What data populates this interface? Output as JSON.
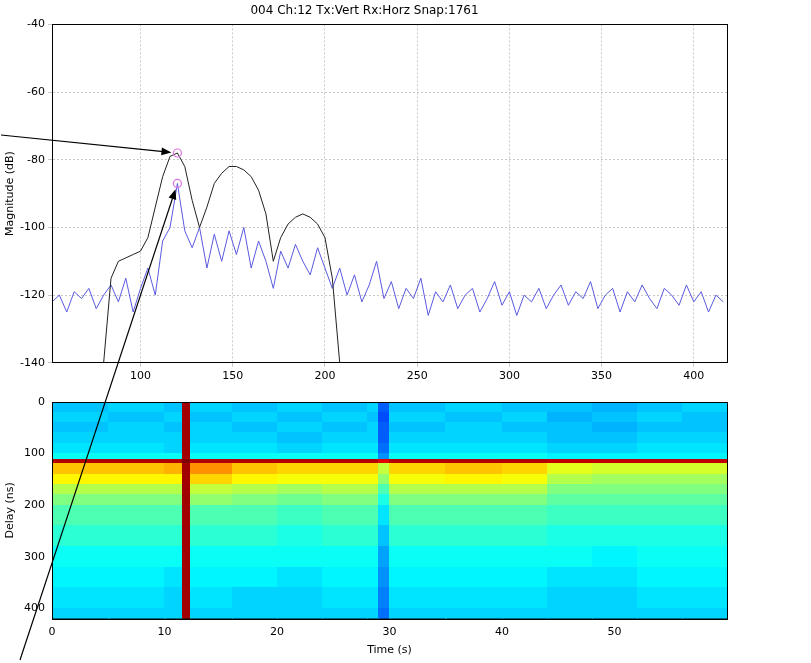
{
  "chart_data": [
    {
      "type": "line",
      "title": "004 Ch:12 Tx:Vert Rx:Horz Snap:1761",
      "y_label": "Magnitude (dB)",
      "x": [
        52,
        56,
        60,
        64,
        68,
        72,
        76,
        80,
        84,
        88,
        92,
        96,
        100,
        104,
        108,
        112,
        116,
        120,
        124,
        128,
        132,
        136,
        140,
        144,
        148,
        152,
        156,
        160,
        164,
        168,
        172,
        176,
        180,
        184,
        188,
        192,
        196,
        200,
        204,
        208,
        212,
        216,
        220,
        224,
        228,
        232,
        236,
        240,
        244,
        248,
        252,
        256,
        260,
        264,
        268,
        272,
        276,
        280,
        284,
        288,
        292,
        296,
        300,
        304,
        308,
        312,
        316,
        320,
        324,
        328,
        332,
        336,
        340,
        344,
        348,
        352,
        356,
        360,
        364,
        368,
        372,
        376,
        380,
        384,
        388,
        392,
        396,
        400,
        404,
        408,
        412,
        416
      ],
      "series": [
        {
          "color": "#222222",
          "line_style": "solid",
          "values": [
            null,
            null,
            null,
            null,
            null,
            null,
            null,
            -140,
            -115,
            -110,
            -109,
            -108,
            -107,
            -103,
            -94,
            -85,
            -79,
            -78,
            -82,
            -92,
            -100,
            -94,
            -87,
            -84,
            -82,
            -82,
            -83,
            -85,
            -89,
            -96,
            -110,
            -103,
            -99,
            -97,
            -96,
            -97,
            -99,
            -103,
            -115,
            -140,
            null,
            null,
            null,
            null,
            null,
            null,
            null,
            null,
            null,
            null,
            null,
            null,
            null,
            null,
            null,
            null,
            null,
            null,
            null,
            null,
            null,
            null,
            null,
            null,
            null,
            null,
            null,
            null,
            null,
            null,
            null,
            null,
            null,
            null,
            null,
            null,
            null,
            null,
            null,
            null,
            null,
            null,
            null,
            null,
            null,
            null,
            null,
            null,
            null,
            null,
            null,
            null
          ]
        },
        {
          "color": "#5a5ae0",
          "line_style": "solid",
          "values": [
            -122,
            -120,
            -125,
            -119,
            -121,
            -118,
            -124,
            -120,
            -117,
            -122,
            -115,
            -125,
            -118,
            -112,
            -120,
            -104,
            -100,
            -87,
            -101,
            -106,
            -100,
            -112,
            -102,
            -110,
            -101,
            -108,
            -100,
            -112,
            -104,
            -110,
            -118,
            -107,
            -112,
            -105,
            -110,
            -114,
            -106,
            -112,
            -118,
            -112,
            -120,
            -114,
            -122,
            -117,
            -110,
            -121,
            -116,
            -124,
            -118,
            -121,
            -115,
            -126,
            -119,
            -122,
            -117,
            -124,
            -120,
            -118,
            -125,
            -121,
            -116,
            -123,
            -119,
            -126,
            -120,
            -122,
            -118,
            -124,
            -120,
            -117,
            -123,
            -119,
            -121,
            -116,
            -124,
            -120,
            -118,
            -125,
            -119,
            -122,
            -117,
            -121,
            -124,
            -118,
            -120,
            -123,
            -117,
            -122,
            -119,
            -125,
            -120,
            -122
          ]
        }
      ],
      "peaks": {
        "x": [
          120,
          120
        ],
        "y": [
          -78,
          -87
        ],
        "color": "#e070e0",
        "marker": "circle"
      },
      "xlim": [
        52,
        418
      ],
      "xticks": [
        100,
        150,
        200,
        250,
        300,
        350,
        400
      ],
      "ylim": [
        -140,
        -40
      ],
      "yticks": [
        -140,
        -120,
        -100,
        -80,
        -60,
        -40
      ],
      "grid": true
    },
    {
      "type": "heatmap",
      "x_label": "Time (s)",
      "y_label": "Delay (ns)",
      "x_edges": [
        0,
        5,
        10,
        11.6,
        12.3,
        16,
        20,
        24,
        28,
        29,
        30,
        35,
        40,
        44,
        48,
        52,
        56,
        60
      ],
      "y_edges": [
        0,
        20,
        40,
        60,
        80,
        100,
        112,
        120,
        140,
        160,
        180,
        200,
        240,
        280,
        320,
        360,
        400,
        420
      ],
      "cells": [
        [
          -121,
          -120,
          -121,
          -82,
          -120,
          -121,
          -120,
          -121,
          -120,
          -127,
          -121,
          -120,
          -121,
          -121,
          -122,
          -121,
          -120
        ],
        [
          -120,
          -121,
          -120,
          -82,
          -121,
          -120,
          -121,
          -120,
          -121,
          -128,
          -120,
          -121,
          -120,
          -122,
          -121,
          -120,
          -121
        ],
        [
          -121,
          -120,
          -121,
          -82,
          -120,
          -121,
          -120,
          -121,
          -120,
          -127,
          -121,
          -120,
          -121,
          -121,
          -122,
          -121,
          -121
        ],
        [
          -120,
          -120,
          -120,
          -82,
          -120,
          -120,
          -121,
          -120,
          -120,
          -127,
          -120,
          -120,
          -120,
          -121,
          -121,
          -120,
          -120
        ],
        [
          -119,
          -119,
          -120,
          -82,
          -119,
          -119,
          -120,
          -119,
          -119,
          -126,
          -119,
          -119,
          -119,
          -120,
          -120,
          -119,
          -119
        ],
        [
          -117,
          -117,
          -117,
          -82,
          -117,
          -117,
          -117,
          -117,
          -117,
          -124,
          -117,
          -117,
          -117,
          -118,
          -118,
          -118,
          -118
        ],
        [
          -83,
          -83,
          -83,
          -80,
          -83,
          -83,
          -83,
          -83,
          -83,
          -86,
          -83,
          -83,
          -83,
          -84,
          -84,
          -84,
          -84
        ],
        [
          -99,
          -99,
          -98,
          -82,
          -96,
          -99,
          -100,
          -100,
          -100,
          -106,
          -100,
          -99,
          -100,
          -104,
          -105,
          -105,
          -105
        ],
        [
          -102,
          -102,
          -102,
          -82,
          -100,
          -102,
          -103,
          -103,
          -103,
          -109,
          -103,
          -102,
          -103,
          -107,
          -108,
          -108,
          -108
        ],
        [
          -107,
          -107,
          -107,
          -82,
          -106,
          -107,
          -108,
          -107,
          -107,
          -113,
          -107,
          -107,
          -107,
          -110,
          -110,
          -110,
          -110
        ],
        [
          -110,
          -110,
          -110,
          -82,
          -109,
          -110,
          -111,
          -110,
          -110,
          -116,
          -110,
          -110,
          -110,
          -112,
          -112,
          -112,
          -112
        ],
        [
          -113,
          -113,
          -113,
          -82,
          -113,
          -113,
          -114,
          -113,
          -113,
          -119,
          -113,
          -113,
          -113,
          -114,
          -114,
          -114,
          -114
        ],
        [
          -115,
          -115,
          -115,
          -82,
          -115,
          -115,
          -116,
          -115,
          -115,
          -121,
          -115,
          -115,
          -115,
          -116,
          -116,
          -116,
          -116
        ],
        [
          -117,
          -117,
          -117,
          -82,
          -117,
          -117,
          -117,
          -117,
          -117,
          -123,
          -117,
          -117,
          -117,
          -117,
          -118,
          -117,
          -117
        ],
        [
          -118,
          -118,
          -119,
          -82,
          -118,
          -118,
          -119,
          -118,
          -118,
          -124,
          -118,
          -118,
          -118,
          -119,
          -119,
          -118,
          -118
        ],
        [
          -119,
          -119,
          -120,
          -82,
          -119,
          -120,
          -120,
          -119,
          -119,
          -125,
          -119,
          -119,
          -119,
          -120,
          -120,
          -119,
          -119
        ],
        [
          -120,
          -120,
          -120,
          -82,
          -120,
          -120,
          -120,
          -120,
          -120,
          -126,
          -120,
          -120,
          -120,
          -120,
          -120,
          -120,
          -120
        ]
      ],
      "color_range": [
        -140,
        -80
      ],
      "xlim": [
        0,
        60
      ],
      "xticks": [
        0,
        10,
        20,
        30,
        40,
        50
      ],
      "ylim": [
        0,
        420
      ],
      "yticks": [
        0,
        100,
        200,
        300,
        400
      ],
      "grid": false
    }
  ]
}
